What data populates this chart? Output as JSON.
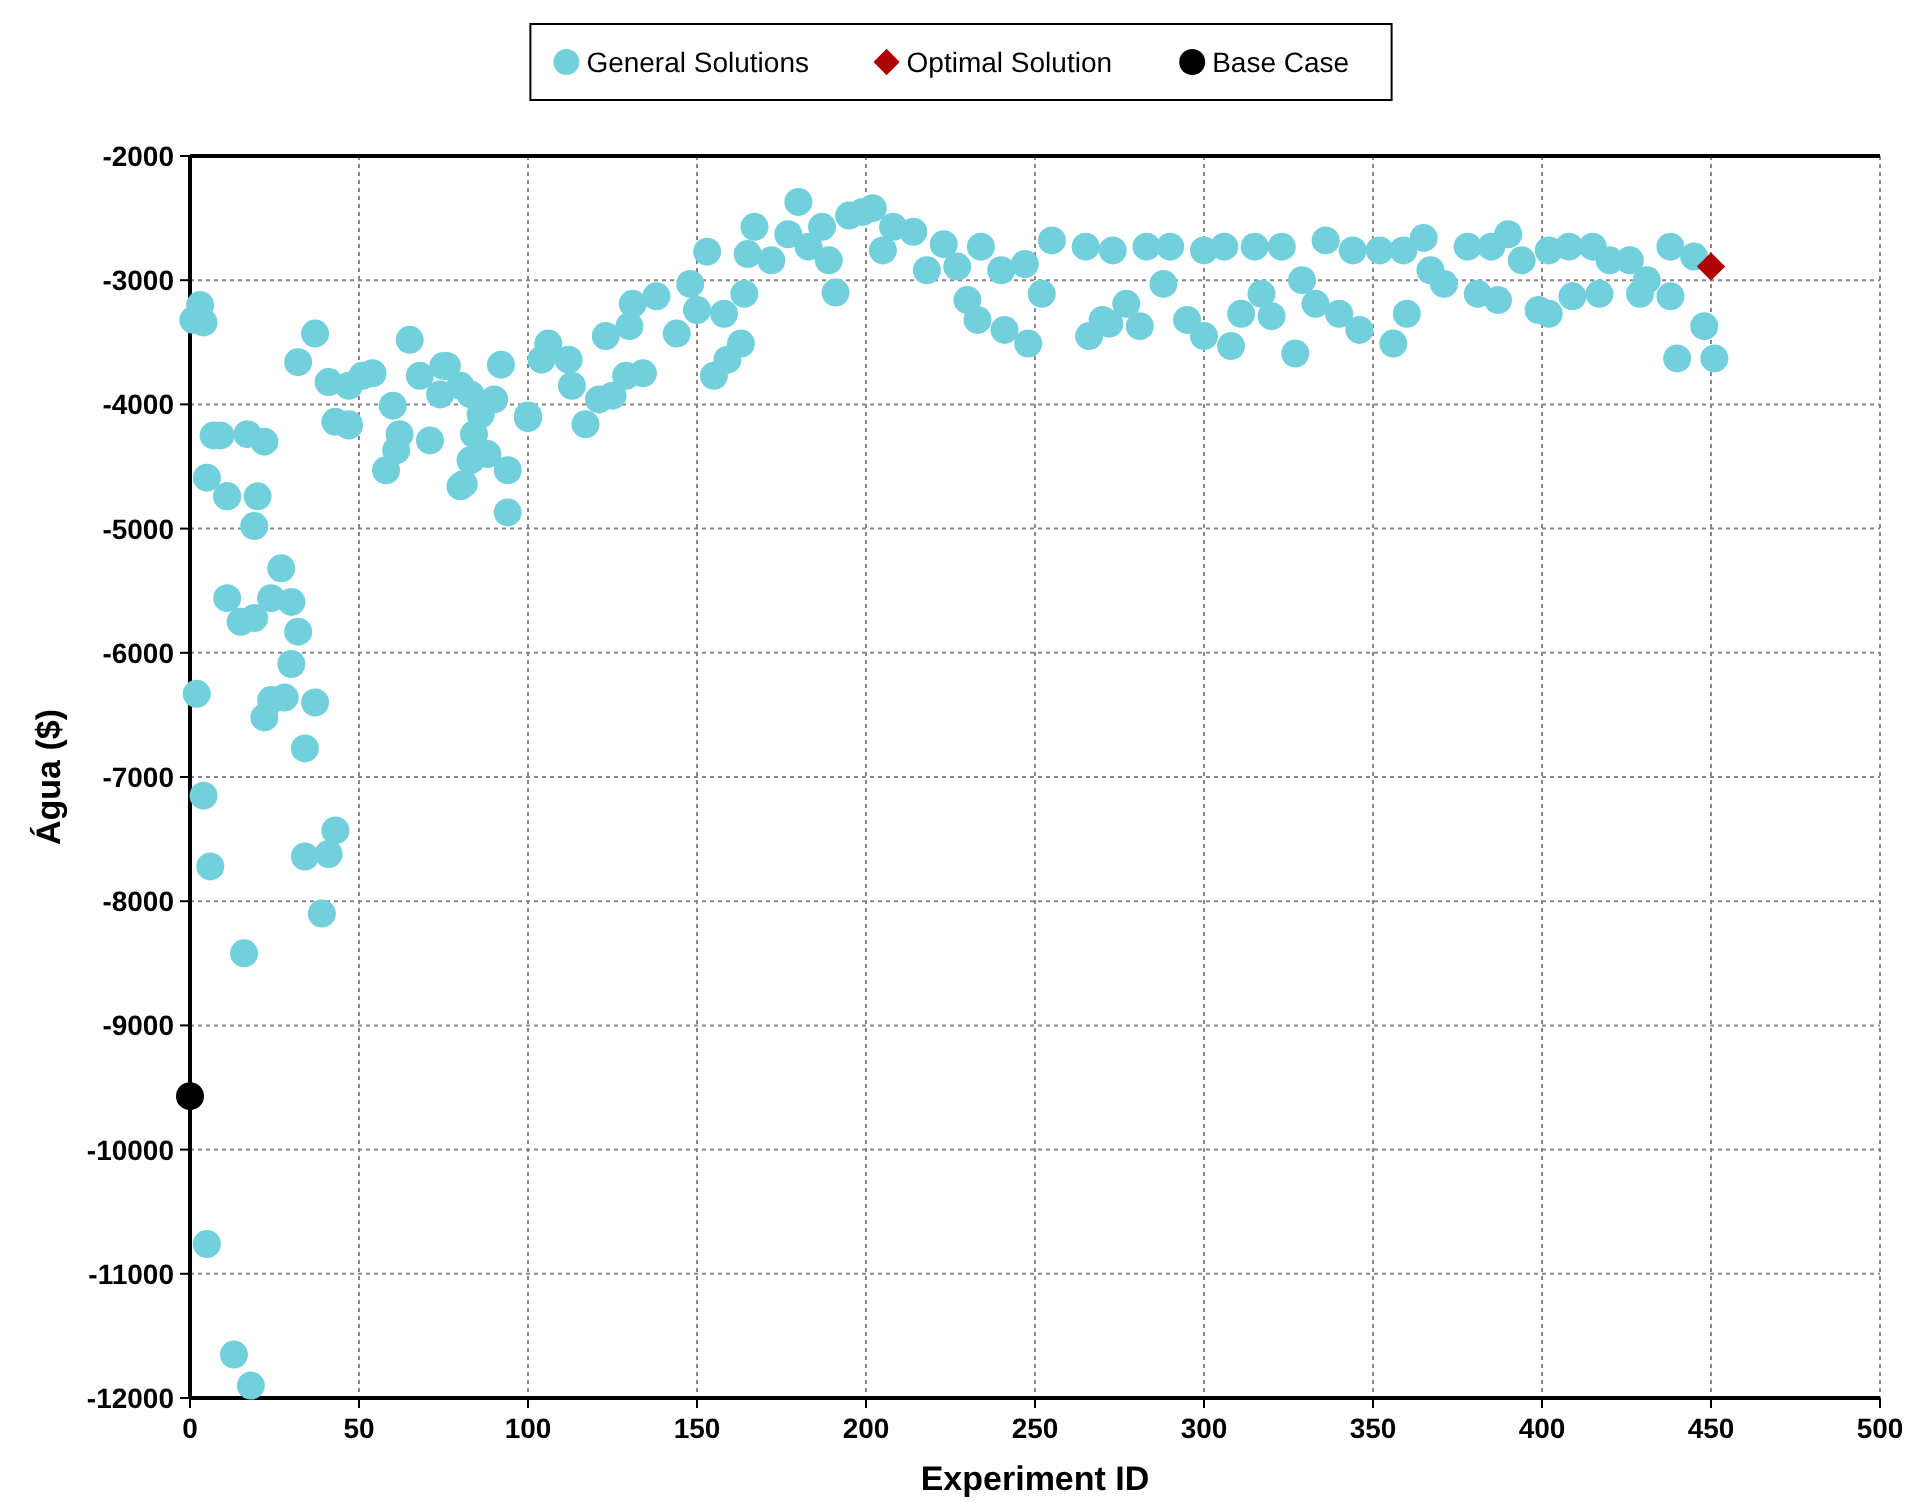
{
  "chart_data": {
    "type": "scatter",
    "xlabel": "Experiment ID",
    "ylabel": "Água ($)",
    "xlim": [
      0,
      500
    ],
    "xticks": [
      0,
      50,
      100,
      150,
      200,
      250,
      300,
      350,
      400,
      450,
      500
    ],
    "ylim": [
      -12000,
      -2000
    ],
    "yticks": [
      -12000,
      -11000,
      -10000,
      -9000,
      -8000,
      -7000,
      -6000,
      -5000,
      -4000,
      -3000,
      -2000
    ],
    "grid": true,
    "legend": "top",
    "series": [
      {
        "name": "General Solutions",
        "color": "#72d0dc",
        "marker": "circle",
        "x": [
          1,
          3,
          5,
          7,
          4,
          9,
          11,
          17,
          22,
          11,
          19,
          20,
          11,
          15,
          19,
          24,
          27,
          30,
          32,
          30,
          24,
          28,
          37,
          22,
          34,
          2,
          4,
          6,
          34,
          41,
          43,
          39,
          16,
          5,
          13,
          18,
          32,
          37,
          41,
          43,
          47,
          51,
          58,
          61,
          65,
          71,
          76,
          81,
          83,
          88,
          94,
          94,
          92,
          100,
          60,
          47,
          54,
          68,
          74,
          80,
          86,
          90,
          47,
          80,
          100,
          104,
          106,
          117,
          123,
          125,
          129,
          131,
          134,
          138,
          144,
          148,
          153,
          155,
          159,
          163,
          164,
          158,
          150,
          167,
          165,
          172,
          180,
          177,
          183,
          187,
          191,
          189,
          195,
          202,
          199,
          208,
          205,
          214,
          218,
          223,
          227,
          233,
          234,
          241,
          248,
          240,
          247,
          255,
          252,
          265,
          266,
          270,
          230,
          75,
          83,
          62,
          112,
          113,
          121,
          84,
          130,
          273,
          272,
          277,
          281,
          283,
          290,
          288,
          295,
          300,
          300,
          306,
          308,
          311,
          315,
          317,
          320,
          323,
          327,
          329,
          333,
          336,
          340,
          344,
          346,
          352,
          356,
          359,
          360,
          365,
          367,
          371,
          378,
          381,
          385,
          387,
          390,
          394,
          399,
          402,
          402,
          408,
          409,
          415,
          417,
          420,
          426,
          429,
          431,
          438,
          438,
          440,
          445,
          448,
          451
        ],
        "values": [
          -3320,
          -3200,
          -4590,
          -4250,
          -3340,
          -4250,
          -4740,
          -4240,
          -4300,
          -5560,
          -4980,
          -4740,
          -4740,
          -5750,
          -5720,
          -5560,
          -5320,
          -5590,
          -5830,
          -6090,
          -6380,
          -6360,
          -6400,
          -6520,
          -6770,
          -6330,
          -7150,
          -7720,
          -7640,
          -7620,
          -7430,
          -8100,
          -8420,
          -10760,
          -11650,
          -11900,
          -3660,
          -3430,
          -3820,
          -4140,
          -4170,
          -3770,
          -4530,
          -4370,
          -3480,
          -4290,
          -3690,
          -4640,
          -4450,
          -4400,
          -4530,
          -4870,
          -3680,
          -4110,
          -4010,
          -3850,
          -3750,
          -3770,
          -3920,
          -3850,
          -4080,
          -3960,
          -4160,
          -4660,
          -4090,
          -3640,
          -3510,
          -4160,
          -3450,
          -3930,
          -3770,
          -3190,
          -3750,
          -3130,
          -3430,
          -3030,
          -2770,
          -3770,
          -3640,
          -3510,
          -3110,
          -3270,
          -3240,
          -2570,
          -2790,
          -2840,
          -2370,
          -2630,
          -2730,
          -2570,
          -3100,
          -2840,
          -2480,
          -2420,
          -2450,
          -2570,
          -2760,
          -2610,
          -2920,
          -2710,
          -2890,
          -3320,
          -2730,
          -3400,
          -3510,
          -2920,
          -2870,
          -2680,
          -3110,
          -2730,
          -3450,
          -3320,
          -3160,
          -3690,
          -3920,
          -4240,
          -3640,
          -3850,
          -3960,
          -4240,
          -3370,
          -2760,
          -3350,
          -3190,
          -3370,
          -2730,
          -2730,
          -3030,
          -3320,
          -3450,
          -2760,
          -2730,
          -3530,
          -3270,
          -2730,
          -3110,
          -3290,
          -2730,
          -3590,
          -3000,
          -3190,
          -2680,
          -3270,
          -2760,
          -3400,
          -2760,
          -3510,
          -2760,
          -3270,
          -2660,
          -2920,
          -3030,
          -2730,
          -3110,
          -2730,
          -3160,
          -2630,
          -2840,
          -3240,
          -3270,
          -2760,
          -2730,
          -3130,
          -2730,
          -3110,
          -2840,
          -2840,
          -3110,
          -3000,
          -2730,
          -3130,
          -3630,
          -2810,
          -3370,
          -3630
        ]
      },
      {
        "name": "Optimal Solution",
        "color": "#b00000",
        "marker": "diamond",
        "x": [
          450
        ],
        "values": [
          -2890
        ]
      },
      {
        "name": "Base Case",
        "color": "#000000",
        "marker": "circle",
        "x": [
          0
        ],
        "values": [
          -9570
        ]
      }
    ]
  }
}
